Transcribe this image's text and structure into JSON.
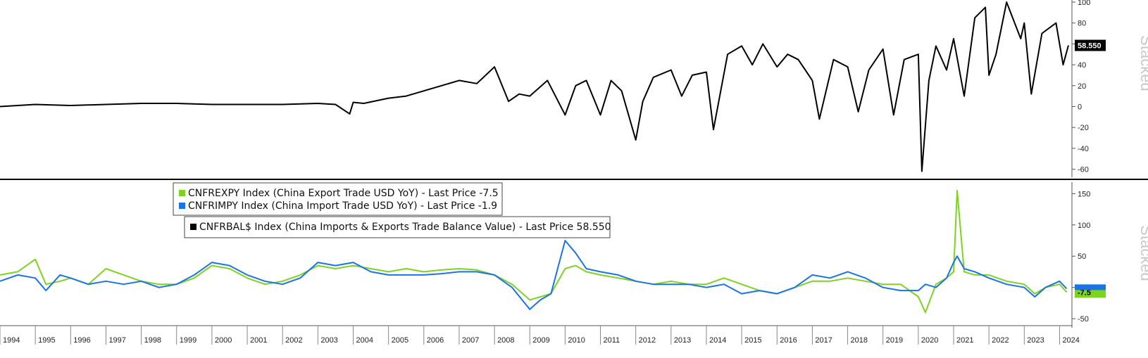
{
  "chart_data": [
    {
      "type": "line",
      "panel": "top",
      "side_label": "Stacked",
      "ylim": [
        -65,
        100
      ],
      "yticks": [
        100,
        80,
        60,
        40,
        20,
        0,
        -20,
        -40,
        -60
      ],
      "last_price_label": "58.550",
      "last_price": 58.55,
      "x": [
        1994.0,
        1995.0,
        1996.0,
        1997.0,
        1998.0,
        1999.0,
        2000.0,
        2001.0,
        2002.0,
        2003.0,
        2003.5,
        2003.9,
        2004.0,
        2004.3,
        2005.0,
        2005.5,
        2006.0,
        2006.5,
        2007.0,
        2007.5,
        2008.0,
        2008.4,
        2008.7,
        2009.0,
        2009.5,
        2010.0,
        2010.3,
        2010.6,
        2011.0,
        2011.3,
        2011.6,
        2012.0,
        2012.2,
        2012.5,
        2013.0,
        2013.3,
        2013.6,
        2014.0,
        2014.2,
        2014.6,
        2015.0,
        2015.3,
        2015.6,
        2016.0,
        2016.3,
        2016.6,
        2017.0,
        2017.2,
        2017.6,
        2018.0,
        2018.3,
        2018.6,
        2019.0,
        2019.3,
        2019.6,
        2020.0,
        2020.1,
        2020.3,
        2020.5,
        2020.8,
        2021.0,
        2021.3,
        2021.6,
        2021.9,
        2022.0,
        2022.2,
        2022.5,
        2022.9,
        2023.0,
        2023.2,
        2023.5,
        2023.9,
        2024.1,
        2024.25
      ],
      "series": [
        {
          "name": "CNFRBAL$ Index (China Imports & Exports Trade Balance Value) - Last Price 58.550",
          "color": "#000000",
          "values": [
            0,
            2,
            1,
            2,
            3,
            3,
            2,
            2,
            2,
            3,
            2,
            -7,
            4,
            3,
            8,
            10,
            15,
            20,
            25,
            22,
            38,
            5,
            12,
            10,
            25,
            -8,
            20,
            25,
            -8,
            25,
            15,
            -32,
            5,
            28,
            35,
            10,
            30,
            33,
            -22,
            50,
            58,
            40,
            60,
            38,
            50,
            45,
            25,
            -12,
            45,
            38,
            -5,
            35,
            55,
            -8,
            45,
            50,
            -62,
            25,
            58,
            35,
            65,
            10,
            85,
            95,
            30,
            50,
            100,
            65,
            80,
            12,
            70,
            80,
            40,
            58.55
          ]
        }
      ]
    },
    {
      "type": "line",
      "panel": "bottom",
      "side_label": "Stacked",
      "ylim": [
        -60,
        165
      ],
      "yticks": [
        150,
        100,
        50,
        0,
        -50
      ],
      "last_price_label": "-7.5",
      "last_price": -7.5,
      "x": [
        1994.0,
        1994.5,
        1995.0,
        1995.3,
        1995.7,
        1996.0,
        1996.5,
        1997.0,
        1997.5,
        1998.0,
        1998.5,
        1999.0,
        1999.5,
        2000.0,
        2000.5,
        2001.0,
        2001.5,
        2002.0,
        2002.5,
        2003.0,
        2003.5,
        2004.0,
        2004.5,
        2005.0,
        2005.5,
        2006.0,
        2006.5,
        2007.0,
        2007.5,
        2008.0,
        2008.5,
        2009.0,
        2009.3,
        2009.6,
        2010.0,
        2010.3,
        2010.6,
        2011.0,
        2011.5,
        2012.0,
        2012.5,
        2013.0,
        2013.5,
        2014.0,
        2014.5,
        2015.0,
        2015.5,
        2016.0,
        2016.5,
        2017.0,
        2017.5,
        2018.0,
        2018.5,
        2019.0,
        2019.5,
        2020.0,
        2020.2,
        2020.5,
        2020.8,
        2021.0,
        2021.1,
        2021.3,
        2021.6,
        2022.0,
        2022.5,
        2023.0,
        2023.3,
        2023.6,
        2024.0,
        2024.2
      ],
      "series": [
        {
          "name": "CNFREXPY Index (China Export Trade USD YoY) - Last Price -7.5",
          "color": "#7ed321",
          "values": [
            20,
            25,
            45,
            5,
            10,
            15,
            5,
            30,
            20,
            10,
            5,
            5,
            15,
            35,
            30,
            15,
            5,
            10,
            20,
            35,
            30,
            35,
            30,
            25,
            30,
            25,
            28,
            30,
            28,
            20,
            5,
            -20,
            -15,
            -10,
            30,
            35,
            25,
            20,
            15,
            10,
            5,
            10,
            5,
            5,
            15,
            5,
            -5,
            -10,
            0,
            10,
            10,
            15,
            10,
            5,
            5,
            -15,
            -40,
            5,
            15,
            25,
            155,
            25,
            20,
            20,
            10,
            5,
            -10,
            0,
            5,
            -7.5
          ]
        },
        {
          "name": "CNFRIMPY Index (China Import Trade USD YoY) - Last Price -1.9",
          "color": "#1a73e8",
          "values": [
            10,
            20,
            15,
            -5,
            20,
            15,
            5,
            10,
            5,
            10,
            0,
            5,
            20,
            40,
            35,
            20,
            10,
            5,
            15,
            40,
            35,
            40,
            25,
            20,
            20,
            20,
            22,
            25,
            25,
            20,
            0,
            -35,
            -20,
            -10,
            75,
            55,
            30,
            25,
            20,
            10,
            5,
            5,
            5,
            0,
            5,
            -10,
            -5,
            -10,
            0,
            20,
            15,
            25,
            15,
            0,
            -5,
            -5,
            5,
            0,
            15,
            40,
            50,
            30,
            25,
            15,
            5,
            0,
            -15,
            0,
            10,
            -1.9
          ]
        }
      ]
    }
  ],
  "x_axis": {
    "years": [
      "1994",
      "1995",
      "1996",
      "1997",
      "1998",
      "1999",
      "2000",
      "2001",
      "2002",
      "2003",
      "2004",
      "2005",
      "2006",
      "2007",
      "2008",
      "2009",
      "2010",
      "2011",
      "2012",
      "2013",
      "2014",
      "2015",
      "2016",
      "2017",
      "2018",
      "2019",
      "2020",
      "2021",
      "2022",
      "2023",
      "2024"
    ]
  },
  "colors": {
    "balance": "#000000",
    "exports": "#7ed321",
    "imports": "#1a73e8"
  }
}
